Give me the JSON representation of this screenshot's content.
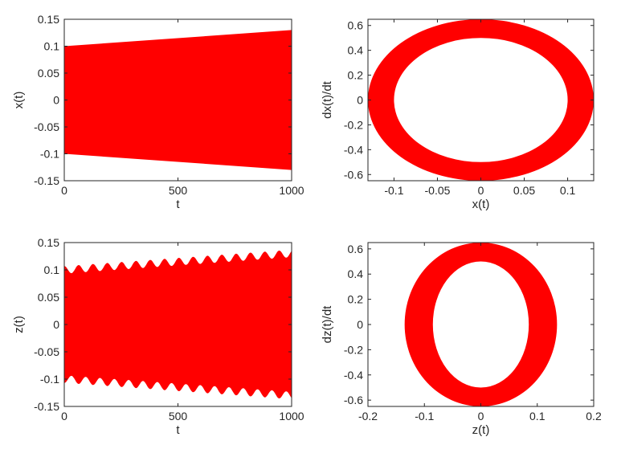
{
  "chart_data": [
    {
      "id": "p1",
      "type": "area",
      "xlabel": "t",
      "ylabel": "x(t)",
      "xlim": [
        0,
        1000
      ],
      "ylim": [
        -0.15,
        0.15
      ],
      "xticks": [
        "0",
        "500",
        "1000"
      ],
      "xtick_values": [
        0,
        500,
        1000
      ],
      "yticks": [
        "0.15",
        "0.1",
        "0.05",
        "0",
        "-0.05",
        "-0.1",
        "-0.15"
      ],
      "ytick_values": [
        0.15,
        0.1,
        0.05,
        0,
        -0.05,
        -0.1,
        -0.15
      ],
      "grid": false,
      "color": "#ff0000",
      "series": [
        {
          "x": [
            0,
            1000
          ],
          "upper": [
            0.1,
            0.13
          ],
          "lower": [
            -0.1,
            -0.13
          ]
        }
      ]
    },
    {
      "id": "p2",
      "type": "area",
      "subtype": "phase-portrait-annulus",
      "xlabel": "x(t)",
      "ylabel": "dx(t)/dt",
      "xlim": [
        -0.13,
        0.13
      ],
      "ylim": [
        -0.65,
        0.65
      ],
      "xticks": [
        "-0.1",
        "-0.05",
        "0",
        "0.05",
        "0.1"
      ],
      "xtick_values": [
        -0.1,
        -0.05,
        0,
        0.05,
        0.1
      ],
      "yticks": [
        "0.6",
        "0.4",
        "0.2",
        "0",
        "-0.2",
        "-0.4",
        "-0.6"
      ],
      "ytick_values": [
        0.6,
        0.4,
        0.2,
        0,
        -0.2,
        -0.4,
        -0.6
      ],
      "grid": false,
      "color": "#ff0000",
      "series": [
        {
          "center": [
            0,
            0
          ],
          "outer_radius": [
            0.13,
            0.65
          ],
          "inner_radius": [
            0.1,
            0.5
          ]
        }
      ]
    },
    {
      "id": "p3",
      "type": "area",
      "xlabel": "t",
      "ylabel": "z(t)",
      "xlim": [
        0,
        1000
      ],
      "ylim": [
        -0.15,
        0.15
      ],
      "xticks": [
        "0",
        "500",
        "1000"
      ],
      "xtick_values": [
        0,
        500,
        1000
      ],
      "yticks": [
        "0.15",
        "0.1",
        "0.05",
        "0",
        "-0.05",
        "-0.1",
        "-0.15"
      ],
      "ytick_values": [
        0.15,
        0.1,
        0.05,
        0,
        -0.05,
        -0.1,
        -0.15
      ],
      "grid": false,
      "color": "#ff0000",
      "series": [
        {
          "envelope_start": 0.1,
          "envelope_end": 0.13,
          "ripple_amplitude": 0.007,
          "ripple_period": 63
        }
      ]
    },
    {
      "id": "p4",
      "type": "area",
      "subtype": "phase-portrait-annulus",
      "xlabel": "z(t)",
      "ylabel": "dz(t)/dt",
      "xlim": [
        -0.2,
        0.2
      ],
      "ylim": [
        -0.65,
        0.65
      ],
      "xticks": [
        "-0.2",
        "-0.1",
        "0",
        "0.1",
        "0.2"
      ],
      "xtick_values": [
        -0.2,
        -0.1,
        0,
        0.1,
        0.2
      ],
      "yticks": [
        "0.6",
        "0.4",
        "0.2",
        "0",
        "-0.2",
        "-0.4",
        "-0.6"
      ],
      "ytick_values": [
        0.6,
        0.4,
        0.2,
        0,
        -0.2,
        -0.4,
        -0.6
      ],
      "grid": false,
      "color": "#ff0000",
      "series": [
        {
          "center": [
            0,
            0
          ],
          "outer_radius": [
            0.135,
            0.65
          ],
          "inner_radius": [
            0.085,
            0.5
          ]
        }
      ]
    }
  ]
}
